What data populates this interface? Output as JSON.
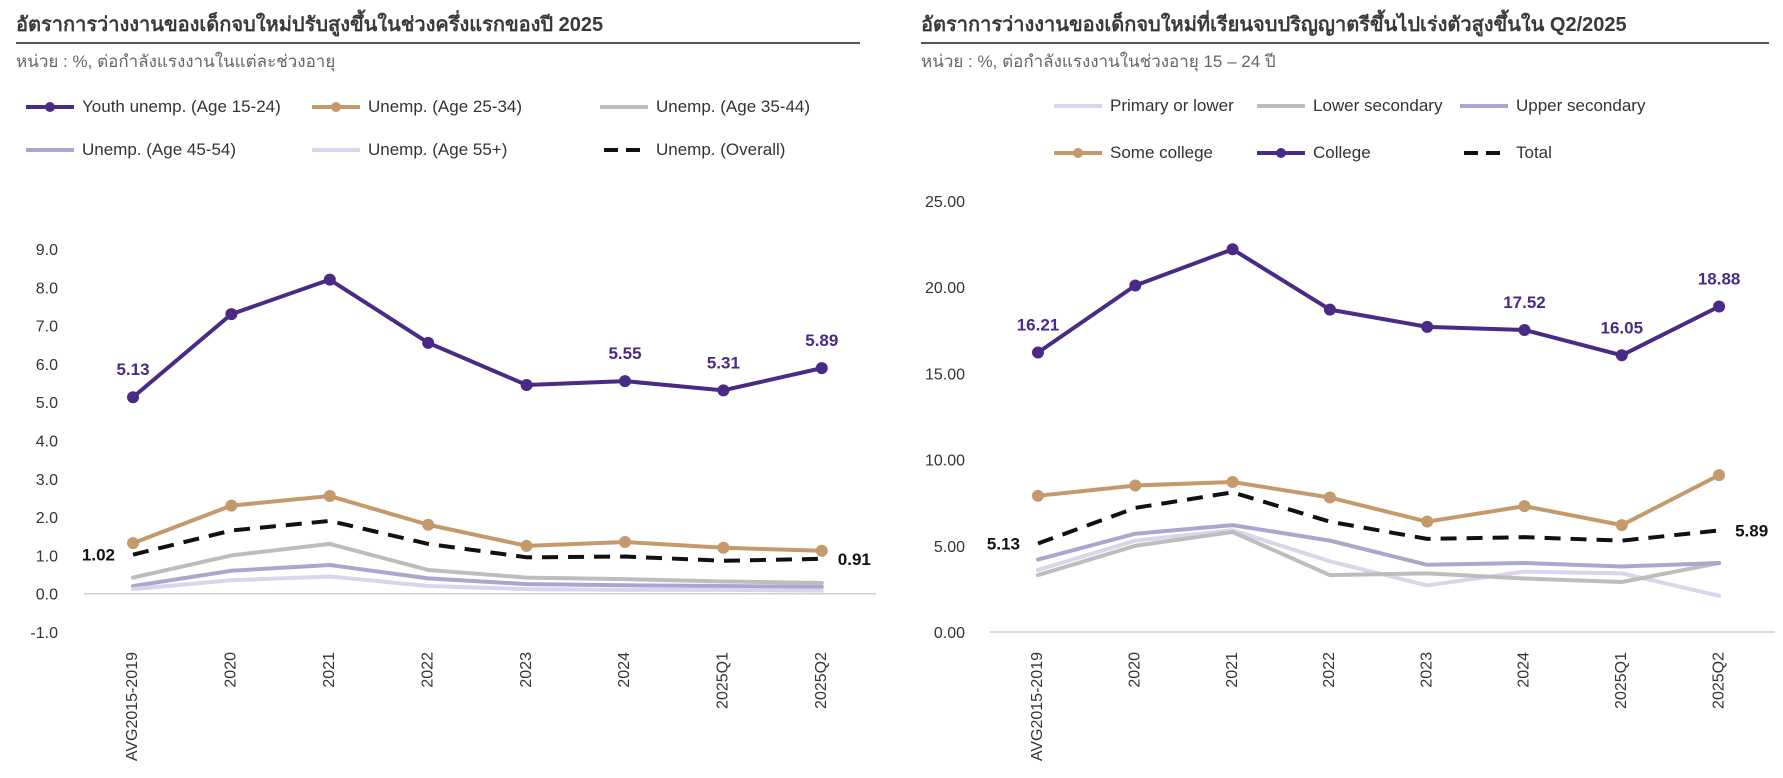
{
  "chart_data": [
    {
      "type": "line",
      "title": "อัตราการว่างงานของเด็กจบใหม่ปรับสูงขึ้นในช่วงครึ่งแรกของปี 2025",
      "subtitle": "หน่วย : %, ต่อกำลังแรงงานในแต่ละช่วงอายุ",
      "xlabel": "",
      "ylabel": "",
      "categories": [
        "AVG2015-2019",
        "2020",
        "2021",
        "2022",
        "2023",
        "2024",
        "2025Q1",
        "2025Q2"
      ],
      "ylim": [
        -1.0,
        9.0
      ],
      "yticks": [
        "-1.0",
        "0.0",
        "1.0",
        "2.0",
        "3.0",
        "4.0",
        "5.0",
        "6.0",
        "7.0",
        "8.0",
        "9.0"
      ],
      "grid": false,
      "legend_position": "top",
      "series": [
        {
          "name": "Youth unemp. (Age 15-24)",
          "color": "#4b2a86",
          "style": "solid-marker",
          "values": [
            5.13,
            7.3,
            8.2,
            6.55,
            5.45,
            5.55,
            5.31,
            5.89
          ]
        },
        {
          "name": "Unemp. (Age 25-34)",
          "color": "#c49a6c",
          "style": "solid-marker",
          "values": [
            1.32,
            2.3,
            2.55,
            1.8,
            1.25,
            1.35,
            1.2,
            1.12
          ]
        },
        {
          "name": "Unemp. (Age 35-44)",
          "color": "#bdbdbd",
          "style": "solid",
          "values": [
            0.42,
            1.0,
            1.3,
            0.62,
            0.42,
            0.38,
            0.32,
            0.28
          ]
        },
        {
          "name": "Unemp. (Age 45-54)",
          "color": "#a9a7cf",
          "style": "solid",
          "values": [
            0.2,
            0.6,
            0.75,
            0.4,
            0.25,
            0.22,
            0.2,
            0.18
          ]
        },
        {
          "name": "Unemp. (Age 55+)",
          "color": "#dcd3ec",
          "style": "solid",
          "values": [
            0.12,
            0.35,
            0.45,
            0.2,
            0.12,
            0.1,
            0.1,
            0.08
          ]
        },
        {
          "name": "Unemp. (Overall)",
          "color": "#111111",
          "style": "dashed",
          "values": [
            1.02,
            1.65,
            1.9,
            1.3,
            0.95,
            0.97,
            0.86,
            0.91
          ]
        }
      ],
      "annotations": [
        {
          "series": 0,
          "index": 0,
          "text": "5.13"
        },
        {
          "series": 0,
          "index": 5,
          "text": "5.55"
        },
        {
          "series": 0,
          "index": 6,
          "text": "5.31"
        },
        {
          "series": 0,
          "index": 7,
          "text": "5.89"
        },
        {
          "series": 5,
          "index": 0,
          "text": "1.02"
        },
        {
          "series": 5,
          "index": 7,
          "text": "0.91"
        }
      ]
    },
    {
      "type": "line",
      "title": "อัตราการว่างงานของเด็กจบใหม่ที่เรียนจบปริญญาตรีขึ้นไปเร่งตัวสูงขึ้นใน Q2/2025",
      "subtitle": "หน่วย : %, ต่อกำลังแรงงานในช่วงอายุ 15 – 24 ปี",
      "xlabel": "",
      "ylabel": "",
      "categories": [
        "AVG2015-2019",
        "2020",
        "2021",
        "2022",
        "2023",
        "2024",
        "2025Q1",
        "2025Q2"
      ],
      "ylim": [
        0.0,
        25.0
      ],
      "yticks": [
        "0.00",
        "5.00",
        "10.00",
        "15.00",
        "20.00",
        "25.00"
      ],
      "grid": false,
      "legend_position": "top",
      "series": [
        {
          "name": "Primary or lower",
          "color": "#dcd3ec",
          "style": "solid",
          "values": [
            3.6,
            5.3,
            5.9,
            4.1,
            2.7,
            3.5,
            3.4,
            2.1
          ]
        },
        {
          "name": "Lower secondary",
          "color": "#bdbdbd",
          "style": "solid",
          "values": [
            3.3,
            5.0,
            5.8,
            3.3,
            3.4,
            3.1,
            2.9,
            4.0
          ]
        },
        {
          "name": "Upper secondary",
          "color": "#a9a7cf",
          "style": "solid",
          "values": [
            4.2,
            5.7,
            6.2,
            5.3,
            3.9,
            4.0,
            3.8,
            4.0
          ]
        },
        {
          "name": "Some college",
          "color": "#c49a6c",
          "style": "solid-marker",
          "values": [
            7.9,
            8.5,
            8.7,
            7.8,
            6.4,
            7.3,
            6.2,
            9.1
          ]
        },
        {
          "name": "College",
          "color": "#4b2a86",
          "style": "solid-marker",
          "values": [
            16.21,
            20.1,
            22.2,
            18.7,
            17.7,
            17.52,
            16.05,
            18.88
          ]
        },
        {
          "name": "Total",
          "color": "#111111",
          "style": "dashed",
          "values": [
            5.13,
            7.2,
            8.1,
            6.4,
            5.4,
            5.5,
            5.3,
            5.89
          ]
        }
      ],
      "annotations": [
        {
          "series": 4,
          "index": 0,
          "text": "16.21"
        },
        {
          "series": 4,
          "index": 5,
          "text": "17.52"
        },
        {
          "series": 4,
          "index": 6,
          "text": "16.05"
        },
        {
          "series": 4,
          "index": 7,
          "text": "18.88"
        },
        {
          "series": 5,
          "index": 0,
          "text": "5.13"
        },
        {
          "series": 5,
          "index": 7,
          "text": "5.89"
        }
      ]
    }
  ]
}
